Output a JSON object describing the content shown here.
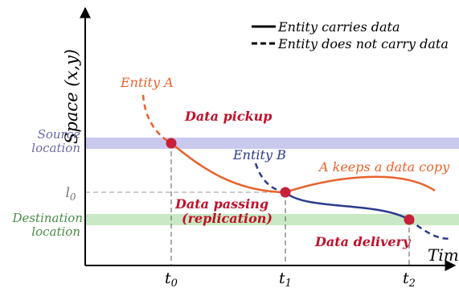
{
  "legend": {
    "solid_label": "Entity carries data",
    "dashed_label": "Entity does not carry data"
  },
  "axes": {
    "y_label": "Space (x,y)",
    "x_label": "Time",
    "ticks": {
      "t0": {
        "base": "t",
        "sub": "0"
      },
      "t1": {
        "base": "t",
        "sub": "1"
      },
      "t2": {
        "base": "t",
        "sub": "2"
      },
      "l0": {
        "base": "l",
        "sub": "0"
      }
    }
  },
  "locations": {
    "source_line1": "Source",
    "source_line2": "location",
    "dest_line1": "Destination",
    "dest_line2": "location"
  },
  "entities": {
    "a": "Entity A",
    "b": "Entity B",
    "a_copy": "A keeps a data copy"
  },
  "events": {
    "pickup": "Data pickup",
    "passing_line1": "Data passing",
    "passing_line2": "(replication)",
    "delivery": "Data delivery"
  },
  "colors": {
    "entity_a": "#e8622c",
    "entity_b": "#2b3a8c",
    "source_band": "#c9c9ee",
    "dest_band": "#c8e9c4",
    "source_text": "#6a6aa8",
    "dest_text": "#4a8a4a",
    "event_dot": "#c8203a",
    "event_text": "#c0102a",
    "axis": "#000000",
    "guide": "#555555"
  }
}
